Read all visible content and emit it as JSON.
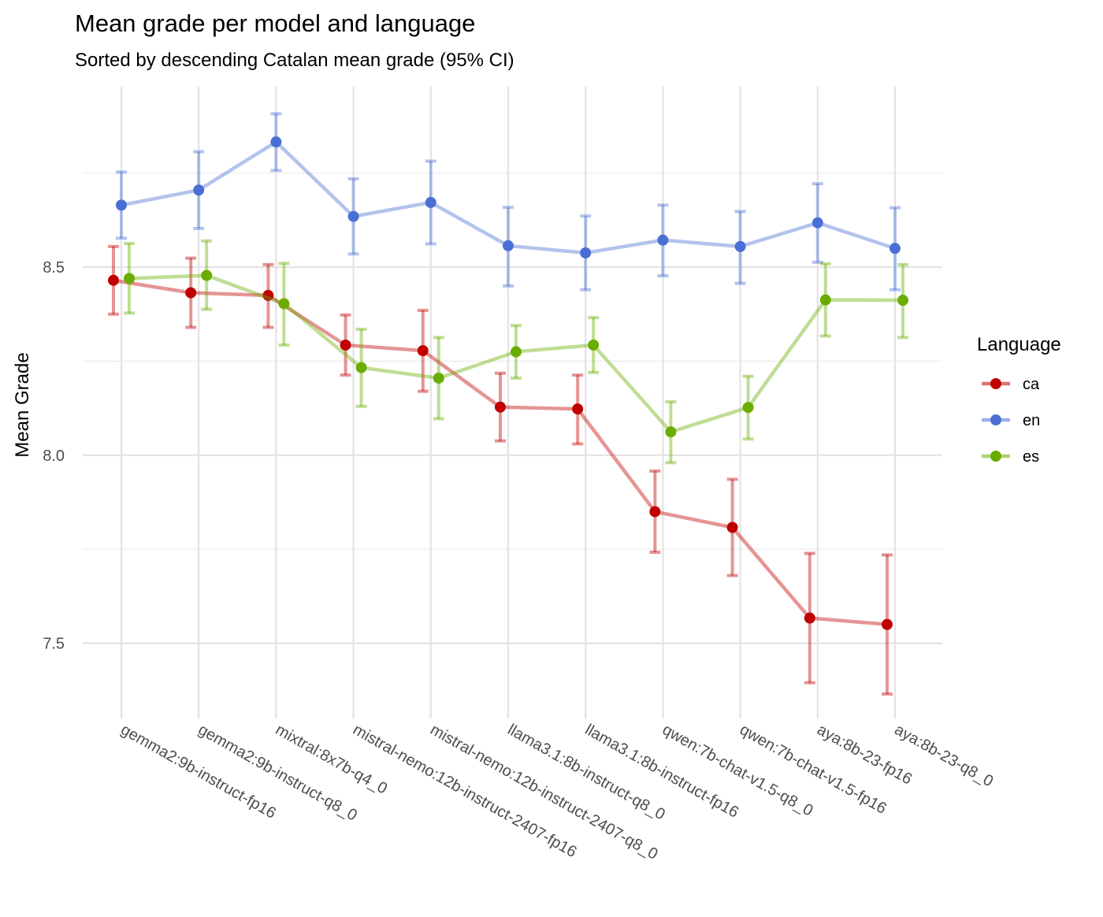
{
  "chart_data": {
    "type": "line",
    "title": "Mean grade per model and language",
    "subtitle": "Sorted by descending Catalan mean grade (95% CI)",
    "xlabel": "",
    "ylabel": "Mean Grade",
    "ylim": [
      7.3,
      8.98
    ],
    "yticks": [
      7.5,
      8.0,
      8.5
    ],
    "ytick_labels": [
      "7.5",
      "8.0",
      "8.5"
    ],
    "grid": true,
    "legend": {
      "title": "Language",
      "position": "right"
    },
    "categories": [
      "gemma2:9b-instruct-fp16",
      "gemma2:9b-instruct-q8_0",
      "mixtral:8x7b-q4_0",
      "mistral-nemo:12b-instruct-2407-fp16",
      "mistral-nemo:12b-instruct-2407-q8_0",
      "llama3.1:8b-instruct-q8_0",
      "llama3.1:8b-instruct-fp16",
      "qwen:7b-chat-v1.5-q8_0",
      "qwen:7b-chat-v1.5-fp16",
      "aya:8b-23-fp16",
      "aya:8b-23-q8_0"
    ],
    "series": [
      {
        "name": "ca",
        "color": "#c00000",
        "values": [
          8.465,
          8.432,
          8.425,
          8.293,
          8.278,
          8.128,
          8.123,
          7.85,
          7.808,
          7.567,
          7.55
        ],
        "lower": [
          8.375,
          8.34,
          8.34,
          8.213,
          8.17,
          8.038,
          8.03,
          7.742,
          7.68,
          7.395,
          7.365
        ],
        "upper": [
          8.555,
          8.524,
          8.507,
          8.373,
          8.385,
          8.218,
          8.213,
          7.958,
          7.936,
          7.739,
          7.735
        ]
      },
      {
        "name": "en",
        "color": "#4a6fd4",
        "values": [
          8.665,
          8.705,
          8.833,
          8.635,
          8.672,
          8.557,
          8.538,
          8.572,
          8.555,
          8.618,
          8.55
        ],
        "lower": [
          8.577,
          8.603,
          8.757,
          8.535,
          8.562,
          8.45,
          8.44,
          8.477,
          8.457,
          8.513,
          8.44
        ],
        "upper": [
          8.753,
          8.807,
          8.908,
          8.735,
          8.782,
          8.659,
          8.636,
          8.665,
          8.648,
          8.722,
          8.658
        ]
      },
      {
        "name": "es",
        "color": "#6aad00",
        "values": [
          8.47,
          8.478,
          8.403,
          8.233,
          8.205,
          8.275,
          8.293,
          8.062,
          8.127,
          8.413,
          8.412
        ],
        "lower": [
          8.378,
          8.388,
          8.293,
          8.13,
          8.097,
          8.205,
          8.22,
          7.98,
          8.043,
          8.317,
          8.313
        ],
        "upper": [
          8.563,
          8.57,
          8.51,
          8.335,
          8.313,
          8.345,
          8.366,
          8.142,
          8.21,
          8.509,
          8.507
        ]
      }
    ]
  }
}
